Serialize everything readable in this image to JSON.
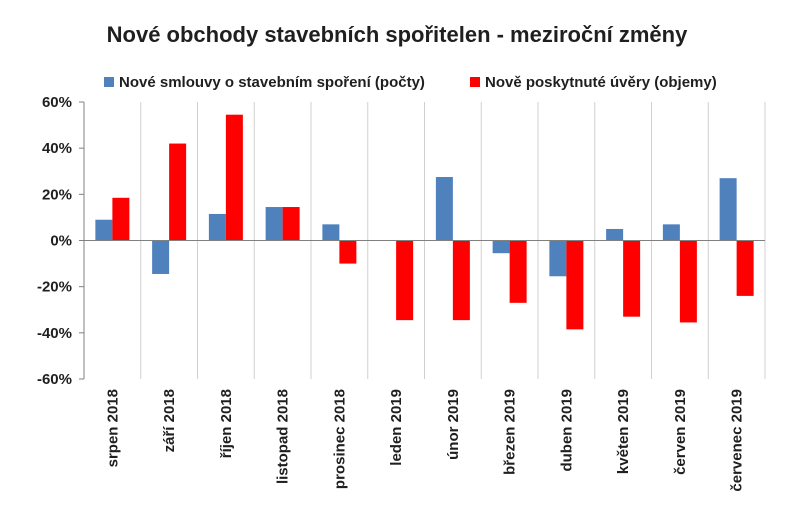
{
  "chart_data": {
    "type": "bar",
    "title": "Nové obchody stavebních spořitelen - meziroční změny",
    "xlabel": "",
    "ylabel": "",
    "ylim": [
      -60,
      60
    ],
    "ytick_step": 20,
    "ytick_format": "percent",
    "grid": "vertical category separators",
    "legend_position": "top",
    "categories": [
      "srpen 2018",
      "září 2018",
      "říjen 2018",
      "listopad 2018",
      "prosinec 2018",
      "leden 2019",
      "únor 2019",
      "březen 2019",
      "duben 2019",
      "květen 2019",
      "červen 2019",
      "červenec 2019"
    ],
    "series": [
      {
        "name": "Nové smlouvy o stavebním spoření (počty)",
        "color": "#4F81BD",
        "values": [
          9,
          -14.5,
          11.5,
          14.5,
          7,
          0,
          27.5,
          -5.5,
          -15.5,
          5,
          7,
          27
        ]
      },
      {
        "name": "Nově poskytnuté úvěry (objemy)",
        "color": "#FF0000",
        "values": [
          18.5,
          42,
          54.5,
          14.5,
          -10,
          -34.5,
          -34.5,
          -27,
          -38.5,
          -33,
          -35.5,
          -24
        ]
      }
    ]
  }
}
